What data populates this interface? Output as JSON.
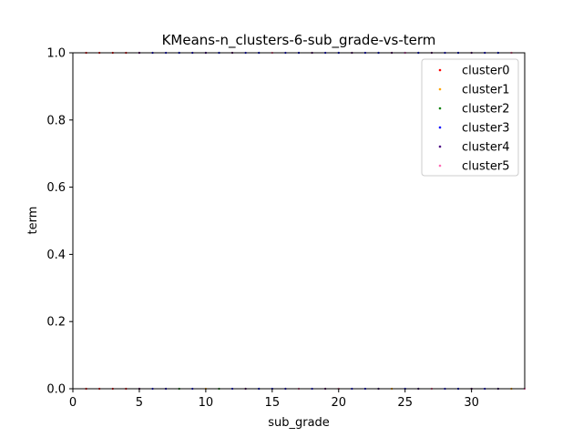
{
  "chart_data": {
    "type": "scatter",
    "title": "KMeans-n_clusters-6-sub_grade-vs-term",
    "xlabel": "sub_grade",
    "ylabel": "term",
    "xlim": [
      0,
      34
    ],
    "ylim": [
      0,
      1.0
    ],
    "xticks": [
      0,
      5,
      10,
      15,
      20,
      25,
      30
    ],
    "yticks": [
      0.0,
      0.2,
      0.4,
      0.6,
      0.8,
      1.0
    ],
    "xtick_labels": [
      "0",
      "5",
      "10",
      "15",
      "20",
      "25",
      "30"
    ],
    "ytick_labels": [
      "0.0",
      "0.2",
      "0.4",
      "0.6",
      "0.8",
      "1.0"
    ],
    "legend_position": "top-right",
    "grid": false,
    "series": [
      {
        "name": "cluster0",
        "color": "#ff0000",
        "points": [
          [
            1,
            1
          ],
          [
            2,
            1
          ],
          [
            3,
            1
          ],
          [
            4,
            1
          ],
          [
            5,
            1
          ],
          [
            1,
            0
          ],
          [
            2,
            0
          ],
          [
            3,
            0
          ],
          [
            4,
            0
          ],
          [
            5,
            0
          ]
        ]
      },
      {
        "name": "cluster1",
        "color": "#ffa500",
        "points": [
          [
            6,
            1
          ],
          [
            9,
            1
          ],
          [
            12,
            1
          ],
          [
            15,
            1
          ],
          [
            18,
            1
          ],
          [
            21,
            1
          ],
          [
            24,
            1
          ],
          [
            27,
            1
          ],
          [
            30,
            1
          ],
          [
            33,
            1
          ],
          [
            7,
            0
          ],
          [
            10,
            0
          ],
          [
            13,
            0
          ],
          [
            16,
            0
          ],
          [
            19,
            0
          ],
          [
            24,
            0
          ],
          [
            27,
            0
          ],
          [
            30,
            0
          ],
          [
            33,
            0
          ]
        ]
      },
      {
        "name": "cluster2",
        "color": "#008000",
        "points": [
          [
            8,
            1
          ],
          [
            11,
            1
          ],
          [
            14,
            1
          ],
          [
            17,
            1
          ],
          [
            20,
            1
          ],
          [
            23,
            1
          ],
          [
            26,
            1
          ],
          [
            29,
            1
          ],
          [
            32,
            1
          ],
          [
            8,
            0
          ],
          [
            11,
            0
          ],
          [
            14,
            0
          ],
          [
            17,
            0
          ],
          [
            20,
            0
          ],
          [
            23,
            0
          ],
          [
            26,
            0
          ],
          [
            29,
            0
          ],
          [
            32,
            0
          ]
        ]
      },
      {
        "name": "cluster3",
        "color": "#0000ff",
        "points": [
          [
            6,
            1
          ],
          [
            7,
            1
          ],
          [
            8,
            1
          ],
          [
            9,
            1
          ],
          [
            10,
            1
          ],
          [
            11,
            1
          ],
          [
            13,
            1
          ],
          [
            14,
            1
          ],
          [
            16,
            1
          ],
          [
            17,
            1
          ],
          [
            19,
            1
          ],
          [
            20,
            1
          ],
          [
            22,
            1
          ],
          [
            23,
            1
          ],
          [
            25,
            1
          ],
          [
            26,
            1
          ],
          [
            28,
            1
          ],
          [
            29,
            1
          ],
          [
            31,
            1
          ],
          [
            32,
            1
          ],
          [
            6,
            0
          ],
          [
            7,
            0
          ],
          [
            9,
            0
          ],
          [
            12,
            0
          ],
          [
            14,
            0
          ],
          [
            15,
            0
          ],
          [
            16,
            0
          ],
          [
            18,
            0
          ],
          [
            21,
            0
          ],
          [
            22,
            0
          ],
          [
            25,
            0
          ],
          [
            28,
            0
          ],
          [
            29,
            0
          ],
          [
            31,
            0
          ]
        ]
      },
      {
        "name": "cluster4",
        "color": "#4b0082",
        "points": [
          [
            5,
            1
          ],
          [
            10,
            1
          ],
          [
            12,
            1
          ],
          [
            18,
            1
          ],
          [
            21,
            1
          ],
          [
            24,
            1
          ],
          [
            27,
            1
          ],
          [
            30,
            1
          ],
          [
            5,
            0
          ],
          [
            13,
            0
          ],
          [
            19,
            0
          ],
          [
            23,
            0
          ],
          [
            26,
            0
          ],
          [
            30,
            0
          ],
          [
            32,
            0
          ]
        ]
      },
      {
        "name": "cluster5",
        "color": "#ff69b4",
        "points": [
          [
            15,
            1
          ],
          [
            25,
            1
          ],
          [
            33,
            1
          ],
          [
            17,
            0
          ],
          [
            20,
            0
          ],
          [
            27,
            0
          ],
          [
            34,
            0
          ]
        ]
      }
    ]
  }
}
